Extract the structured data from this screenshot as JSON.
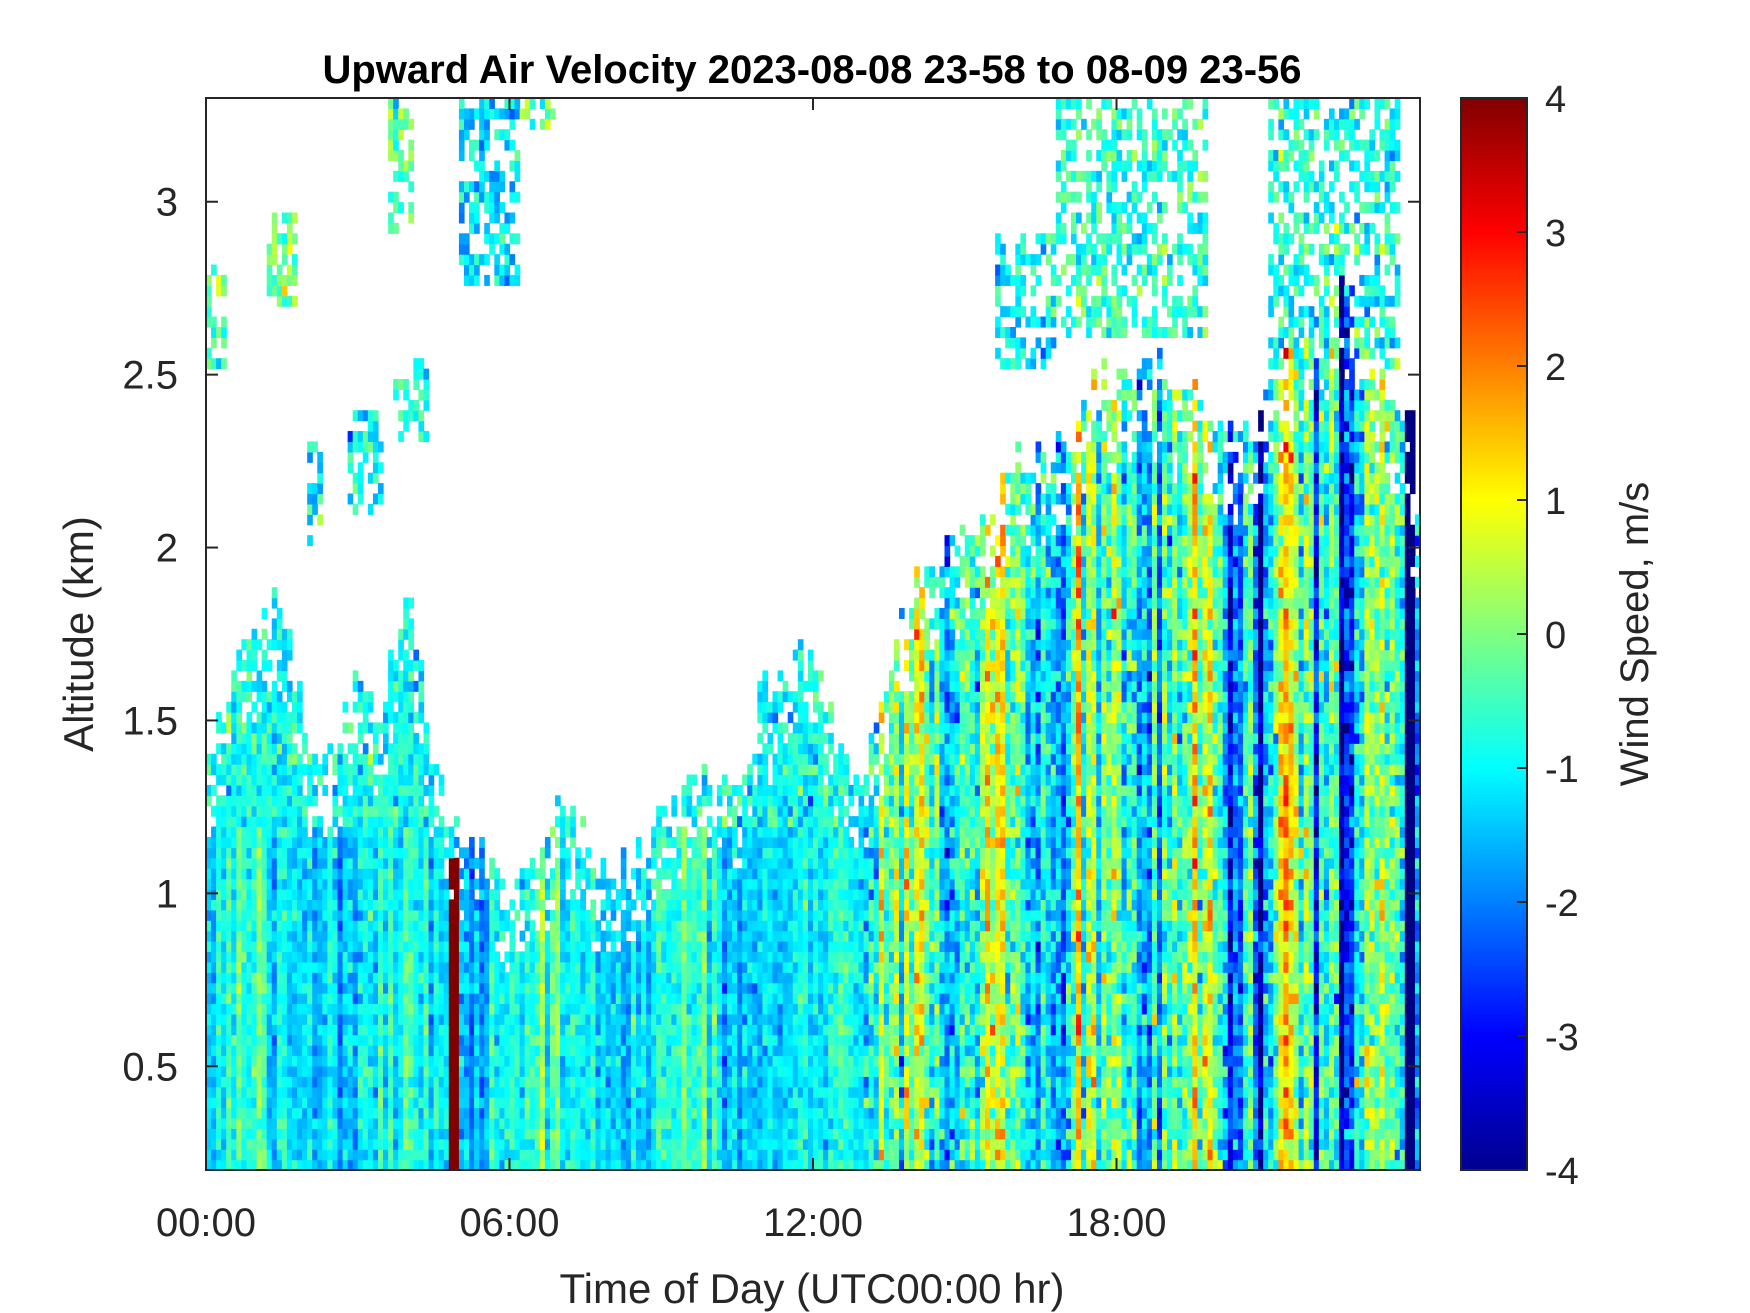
{
  "chart_data": {
    "type": "heatmap",
    "title": "Upward Air Velocity 2023-08-08 23-58 to 08-09 23-56",
    "xlabel": "Time of Day (UTC00:00 hr)",
    "ylabel": "Altitude (km)",
    "colorbar_label": "Wind Speed, m/s",
    "x_unit": "hours UTC",
    "xlim": [
      0,
      24
    ],
    "ylim": [
      0.2,
      3.3
    ],
    "clim": [
      -4,
      4
    ],
    "colormap": "jet",
    "x_ticks": [
      {
        "value": 0,
        "label": "00:00"
      },
      {
        "value": 6,
        "label": "06:00"
      },
      {
        "value": 12,
        "label": "12:00"
      },
      {
        "value": 18,
        "label": "18:00"
      }
    ],
    "y_ticks": [
      {
        "value": 0.5,
        "label": "0.5"
      },
      {
        "value": 1,
        "label": "1"
      },
      {
        "value": 1.5,
        "label": "1.5"
      },
      {
        "value": 2,
        "label": "2"
      },
      {
        "value": 2.5,
        "label": "2.5"
      },
      {
        "value": 3,
        "label": "3"
      }
    ],
    "colorbar_ticks": [
      {
        "value": 4,
        "label": "4"
      },
      {
        "value": 3,
        "label": "3"
      },
      {
        "value": 2,
        "label": "2"
      },
      {
        "value": 1,
        "label": "1"
      },
      {
        "value": 0,
        "label": "0"
      },
      {
        "value": -1,
        "label": "-1"
      },
      {
        "value": -2,
        "label": "-2"
      },
      {
        "value": -3,
        "label": "-3"
      },
      {
        "value": -4,
        "label": "-4"
      }
    ],
    "data_top_km": [
      {
        "t": 0.0,
        "top": 1.35
      },
      {
        "t": 0.5,
        "top": 1.6
      },
      {
        "t": 1.0,
        "top": 1.75
      },
      {
        "t": 1.5,
        "top": 1.85
      },
      {
        "t": 2.0,
        "top": 1.45
      },
      {
        "t": 2.5,
        "top": 1.4
      },
      {
        "t": 3.0,
        "top": 1.6
      },
      {
        "t": 3.5,
        "top": 1.55
      },
      {
        "t": 4.0,
        "top": 1.9
      },
      {
        "t": 4.5,
        "top": 1.35
      },
      {
        "t": 5.0,
        "top": 1.2
      },
      {
        "t": 5.5,
        "top": 1.15
      },
      {
        "t": 6.0,
        "top": 1.0
      },
      {
        "t": 6.5,
        "top": 1.1
      },
      {
        "t": 7.0,
        "top": 1.3
      },
      {
        "t": 7.5,
        "top": 1.15
      },
      {
        "t": 8.0,
        "top": 1.1
      },
      {
        "t": 8.5,
        "top": 1.1
      },
      {
        "t": 9.0,
        "top": 1.2
      },
      {
        "t": 9.5,
        "top": 1.3
      },
      {
        "t": 10.0,
        "top": 1.35
      },
      {
        "t": 10.5,
        "top": 1.3
      },
      {
        "t": 11.0,
        "top": 1.6
      },
      {
        "t": 11.5,
        "top": 1.65
      },
      {
        "t": 12.0,
        "top": 1.75
      },
      {
        "t": 12.5,
        "top": 1.4
      },
      {
        "t": 13.0,
        "top": 1.35
      },
      {
        "t": 13.5,
        "top": 1.7
      },
      {
        "t": 14.0,
        "top": 1.9
      },
      {
        "t": 14.5,
        "top": 2.0
      },
      {
        "t": 15.0,
        "top": 2.05
      },
      {
        "t": 15.5,
        "top": 2.1
      },
      {
        "t": 16.0,
        "top": 2.25
      },
      {
        "t": 16.5,
        "top": 2.3
      },
      {
        "t": 17.0,
        "top": 2.3
      },
      {
        "t": 17.5,
        "top": 2.45
      },
      {
        "t": 18.0,
        "top": 2.5
      },
      {
        "t": 18.5,
        "top": 2.55
      },
      {
        "t": 19.0,
        "top": 2.5
      },
      {
        "t": 19.5,
        "top": 2.45
      },
      {
        "t": 20.0,
        "top": 2.4
      },
      {
        "t": 20.5,
        "top": 2.35
      },
      {
        "t": 21.0,
        "top": 2.45
      },
      {
        "t": 21.5,
        "top": 2.55
      },
      {
        "t": 22.0,
        "top": 2.7
      },
      {
        "t": 22.5,
        "top": 2.75
      },
      {
        "t": 23.0,
        "top": 2.6
      },
      {
        "t": 23.5,
        "top": 2.4
      },
      {
        "t": 24.0,
        "top": 2.1
      }
    ],
    "upper_patches": [
      {
        "t": [
          0.0,
          0.4
        ],
        "alt": [
          2.5,
          2.8
        ],
        "mean": -0.5
      },
      {
        "t": [
          1.2,
          1.8
        ],
        "alt": [
          2.7,
          2.95
        ],
        "mean": 0.0
      },
      {
        "t": [
          2.0,
          2.3
        ],
        "alt": [
          2.0,
          2.3
        ],
        "mean": -1.2
      },
      {
        "t": [
          2.8,
          3.5
        ],
        "alt": [
          2.1,
          2.4
        ],
        "mean": -1.0
      },
      {
        "t": [
          3.7,
          4.4
        ],
        "alt": [
          2.3,
          2.55
        ],
        "mean": -0.8
      },
      {
        "t": [
          3.6,
          4.1
        ],
        "alt": [
          2.9,
          3.3
        ],
        "mean": -0.3
      },
      {
        "t": [
          5.0,
          6.2
        ],
        "alt": [
          2.75,
          3.3
        ],
        "mean": -1.2
      },
      {
        "t": [
          6.2,
          6.9
        ],
        "alt": [
          3.2,
          3.3
        ],
        "mean": 0.0
      },
      {
        "t": [
          15.6,
          16.8
        ],
        "alt": [
          2.5,
          2.9
        ],
        "mean": -1.1
      },
      {
        "t": [
          16.8,
          19.8
        ],
        "alt": [
          2.6,
          3.3
        ],
        "mean": -0.6
      },
      {
        "t": [
          21.0,
          23.6
        ],
        "alt": [
          2.5,
          3.3
        ],
        "mean": -0.8
      }
    ],
    "notable_features": [
      {
        "t": [
          4.85,
          4.95
        ],
        "alt": [
          0.2,
          1.1
        ],
        "note": "dark red vertical streak"
      },
      {
        "t": [
          23.8,
          23.85
        ],
        "alt": [
          0.2,
          2.4
        ],
        "note": "dark gap line"
      },
      {
        "t": [
          13.0,
          24.0
        ],
        "alt": [
          0.2,
          2.0
        ],
        "note": "strong updrafts (orange/red) mixed with downdrafts (blue)"
      },
      {
        "t": [
          0.0,
          12.0
        ],
        "alt": [
          0.2,
          1.5
        ],
        "note": "mostly -1 to -2 m/s (cyan/blue)"
      }
    ]
  }
}
